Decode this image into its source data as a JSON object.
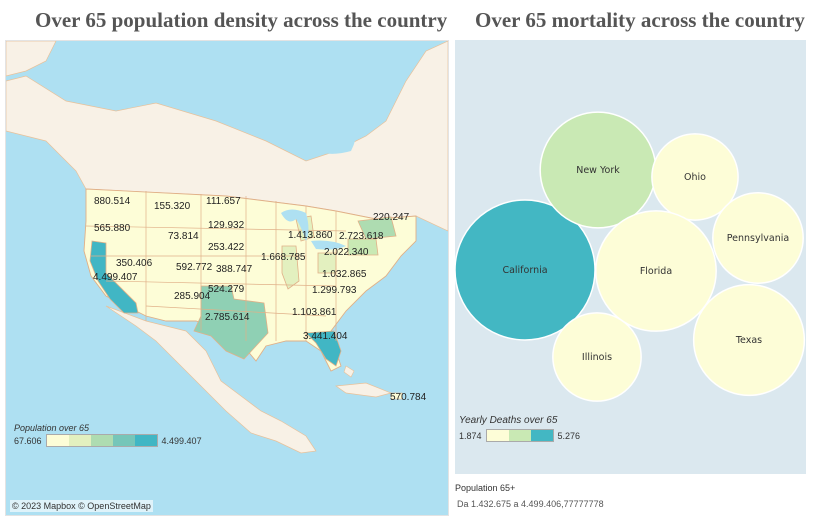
{
  "left_title": "Over 65 population density across the country",
  "right_title": "Over 65 mortality across the country",
  "map": {
    "copyright": "© 2023 Mapbox © OpenStreetMap",
    "legend": {
      "title": "Population over 65",
      "min": "67.606",
      "max": "4.499.407",
      "colors": [
        "#fdfdd7",
        "#e3f0bf",
        "#aedcb1",
        "#76c6b9",
        "#41b6c4"
      ]
    },
    "labels": [
      "880.514",
      "155.320",
      "111.657",
      "565.880",
      "73.814",
      "129.932",
      "253.422",
      "220.247",
      "1.413.860",
      "2.723.618",
      "350.406",
      "1.668.785",
      "2.022.340",
      "592.772",
      "388.747",
      "4.499.407",
      "1.032.865",
      "524.279",
      "1.299.793",
      "285.904",
      "2.785.614",
      "1.103.861",
      "3.441.404",
      "570.784"
    ]
  },
  "chart_data": {
    "type": "bubble",
    "title": "Over 65 mortality across the country",
    "bubbles": [
      {
        "name": "California",
        "value": 5.276,
        "color": "#43b7c3"
      },
      {
        "name": "New York",
        "value": 3.6,
        "color": "#c9e9b4"
      },
      {
        "name": "Ohio",
        "value": 2.0,
        "color": "#fdfdd7"
      },
      {
        "name": "Pennsylvania",
        "value": 2.2,
        "color": "#fdfdd7"
      },
      {
        "name": "Florida",
        "value": 3.9,
        "color": "#fdfdd7"
      },
      {
        "name": "Texas",
        "value": 3.3,
        "color": "#fdfdd7"
      },
      {
        "name": "Illinois",
        "value": 2.1,
        "color": "#fdfdd7"
      }
    ],
    "legend": {
      "title": "Yearly Deaths over 65",
      "min": "1.874",
      "max": "5.276",
      "colors": [
        "#fdfdd7",
        "#c9e9b4",
        "#43b7c3"
      ]
    }
  },
  "footer": {
    "title": "Population 65+",
    "range": "Da 1.432.675 a 4.499.406,77777778"
  }
}
